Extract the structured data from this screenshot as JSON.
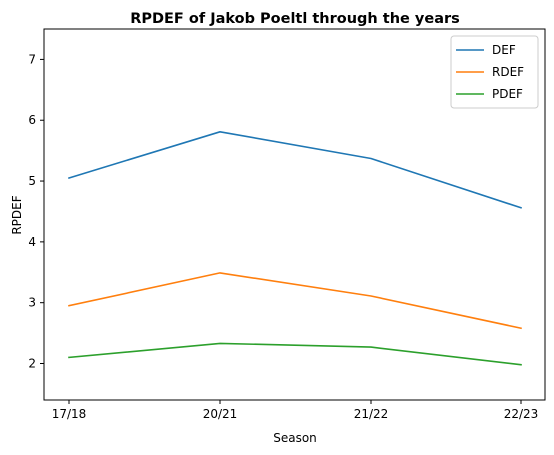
{
  "chart_data": {
    "type": "line",
    "title": "RPDEF of Jakob Poeltl through the years",
    "xlabel": "Season",
    "ylabel": "RPDEF",
    "categories": [
      "17/18",
      "20/21",
      "21/22",
      "22/23"
    ],
    "ylim": [
      1.4,
      7.5
    ],
    "yticks": [
      2,
      3,
      4,
      5,
      6,
      7
    ],
    "grid": false,
    "legend_position": "top-right",
    "series": [
      {
        "name": "DEF",
        "color": "#1f77b4",
        "values": [
          5.05,
          5.81,
          5.37,
          4.56
        ]
      },
      {
        "name": "RDEF",
        "color": "#ff7f0e",
        "values": [
          2.95,
          3.49,
          3.11,
          2.58
        ]
      },
      {
        "name": "PDEF",
        "color": "#2ca02c",
        "values": [
          2.1,
          2.33,
          2.27,
          1.98
        ]
      }
    ]
  }
}
